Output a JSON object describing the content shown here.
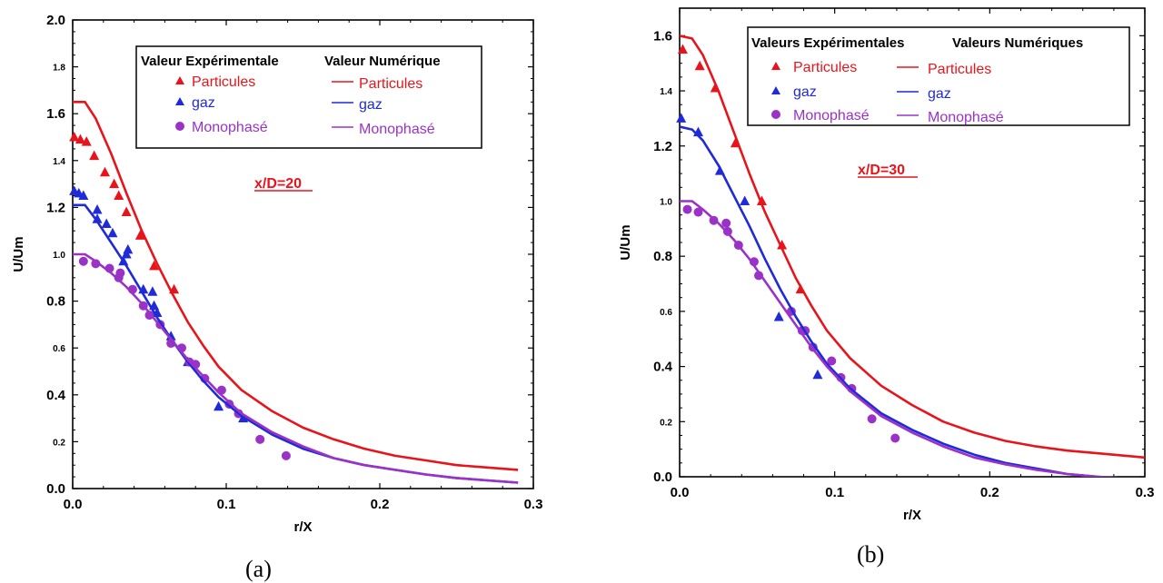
{
  "chart_data": [
    {
      "type": "scatter",
      "subfigure_label": "(a)",
      "annotation": "x/D=20",
      "xlabel": "r/X",
      "ylabel": "U/Um",
      "xlim": [
        0,
        0.3
      ],
      "ylim": [
        0,
        2.0
      ],
      "x_ticks": [
        "0.0",
        "0.1",
        "0.2",
        "0.3"
      ],
      "y_ticks": [
        {
          "v": 0.0,
          "t": "0.0",
          "major": true
        },
        {
          "v": 0.2,
          "t": "0.2",
          "major": false
        },
        {
          "v": 0.4,
          "t": "0.4",
          "major": true
        },
        {
          "v": 0.6,
          "t": "0.6",
          "major": false
        },
        {
          "v": 0.8,
          "t": "0.8",
          "major": true
        },
        {
          "v": 1.0,
          "t": "1.0",
          "major": false
        },
        {
          "v": 1.2,
          "t": "1.2",
          "major": true
        },
        {
          "v": 1.4,
          "t": "1.4",
          "major": false
        },
        {
          "v": 1.6,
          "t": "1.6",
          "major": true
        },
        {
          "v": 1.8,
          "t": "1.8",
          "major": false
        },
        {
          "v": 2.0,
          "t": "2.0",
          "major": true
        }
      ],
      "legend": {
        "exp_title": "Valeur Expérimentale",
        "num_title": "Valeur Numérique",
        "exp_labels": [
          "Particules",
          "gaz",
          "Monophasé"
        ],
        "num_labels": [
          "Particules",
          "gaz",
          "Monophasé"
        ]
      },
      "series": [
        {
          "name": "Particules",
          "kind": "experimental",
          "marker": "triangle",
          "color": "#e8141b",
          "points": [
            [
              0.001,
              1.5
            ],
            [
              0.005,
              1.49
            ],
            [
              0.009,
              1.48
            ],
            [
              0.014,
              1.42
            ],
            [
              0.021,
              1.35
            ],
            [
              0.027,
              1.3
            ],
            [
              0.03,
              1.25
            ],
            [
              0.035,
              1.18
            ],
            [
              0.044,
              1.08
            ],
            [
              0.053,
              0.95
            ],
            [
              0.066,
              0.85
            ]
          ]
        },
        {
          "name": "gaz",
          "kind": "experimental",
          "marker": "triangle",
          "color": "#1f2ad8",
          "points": [
            [
              0.001,
              1.27
            ],
            [
              0.004,
              1.26
            ],
            [
              0.007,
              1.25
            ],
            [
              0.016,
              1.19
            ],
            [
              0.016,
              1.15
            ],
            [
              0.022,
              1.13
            ],
            [
              0.026,
              1.09
            ],
            [
              0.033,
              0.97
            ],
            [
              0.035,
              1.0
            ],
            [
              0.036,
              1.02
            ],
            [
              0.046,
              0.85
            ],
            [
              0.052,
              0.84
            ],
            [
              0.053,
              0.78
            ],
            [
              0.055,
              0.75
            ],
            [
              0.064,
              0.65
            ],
            [
              0.075,
              0.54
            ],
            [
              0.095,
              0.35
            ],
            [
              0.111,
              0.3
            ]
          ]
        },
        {
          "name": "Monophasé",
          "kind": "experimental",
          "marker": "circle",
          "color": "#9b32c8",
          "points": [
            [
              0.007,
              0.97
            ],
            [
              0.015,
              0.96
            ],
            [
              0.024,
              0.94
            ],
            [
              0.03,
              0.9
            ],
            [
              0.031,
              0.92
            ],
            [
              0.039,
              0.85
            ],
            [
              0.046,
              0.78
            ],
            [
              0.05,
              0.74
            ],
            [
              0.057,
              0.7
            ],
            [
              0.064,
              0.62
            ],
            [
              0.071,
              0.6
            ],
            [
              0.076,
              0.54
            ],
            [
              0.08,
              0.53
            ],
            [
              0.086,
              0.47
            ],
            [
              0.097,
              0.42
            ],
            [
              0.102,
              0.36
            ],
            [
              0.108,
              0.32
            ],
            [
              0.122,
              0.21
            ],
            [
              0.139,
              0.14
            ]
          ]
        },
        {
          "name": "Particules",
          "kind": "numerical",
          "color": "#e8141b",
          "points": [
            [
              0,
              1.65
            ],
            [
              0.008,
              1.65
            ],
            [
              0.015,
              1.58
            ],
            [
              0.025,
              1.43
            ],
            [
              0.035,
              1.26
            ],
            [
              0.045,
              1.1
            ],
            [
              0.055,
              0.96
            ],
            [
              0.065,
              0.83
            ],
            [
              0.075,
              0.71
            ],
            [
              0.085,
              0.61
            ],
            [
              0.095,
              0.52
            ],
            [
              0.11,
              0.42
            ],
            [
              0.13,
              0.33
            ],
            [
              0.15,
              0.26
            ],
            [
              0.17,
              0.21
            ],
            [
              0.19,
              0.17
            ],
            [
              0.21,
              0.14
            ],
            [
              0.23,
              0.12
            ],
            [
              0.25,
              0.1
            ],
            [
              0.27,
              0.09
            ],
            [
              0.29,
              0.08
            ]
          ]
        },
        {
          "name": "gaz",
          "kind": "numerical",
          "color": "#1f2ad8",
          "points": [
            [
              0,
              1.21
            ],
            [
              0.008,
              1.21
            ],
            [
              0.015,
              1.15
            ],
            [
              0.025,
              1.05
            ],
            [
              0.035,
              0.95
            ],
            [
              0.045,
              0.84
            ],
            [
              0.055,
              0.73
            ],
            [
              0.065,
              0.63
            ],
            [
              0.075,
              0.54
            ],
            [
              0.085,
              0.46
            ],
            [
              0.095,
              0.39
            ],
            [
              0.11,
              0.31
            ],
            [
              0.13,
              0.23
            ],
            [
              0.15,
              0.17
            ],
            [
              0.17,
              0.13
            ],
            [
              0.19,
              0.1
            ],
            [
              0.21,
              0.08
            ],
            [
              0.23,
              0.06
            ],
            [
              0.25,
              0.045
            ],
            [
              0.27,
              0.035
            ],
            [
              0.29,
              0.025
            ]
          ]
        },
        {
          "name": "Monophasé",
          "kind": "numerical",
          "color": "#9b32c8",
          "points": [
            [
              0,
              1.0
            ],
            [
              0.008,
              1.0
            ],
            [
              0.015,
              0.97
            ],
            [
              0.025,
              0.92
            ],
            [
              0.035,
              0.86
            ],
            [
              0.045,
              0.79
            ],
            [
              0.055,
              0.71
            ],
            [
              0.065,
              0.63
            ],
            [
              0.075,
              0.55
            ],
            [
              0.085,
              0.48
            ],
            [
              0.095,
              0.41
            ],
            [
              0.11,
              0.32
            ],
            [
              0.13,
              0.24
            ],
            [
              0.15,
              0.18
            ],
            [
              0.17,
              0.13
            ],
            [
              0.19,
              0.1
            ],
            [
              0.21,
              0.08
            ],
            [
              0.23,
              0.06
            ],
            [
              0.25,
              0.045
            ],
            [
              0.27,
              0.035
            ],
            [
              0.29,
              0.025
            ]
          ]
        }
      ]
    },
    {
      "type": "scatter",
      "subfigure_label": "(b)",
      "annotation": "x/D=30",
      "xlabel": "r/X",
      "ylabel": "U/Um",
      "xlim": [
        0,
        0.3
      ],
      "ylim": [
        0,
        1.7
      ],
      "x_ticks": [
        "0.0",
        "0.1",
        "0.2",
        "0.3"
      ],
      "y_ticks": [
        {
          "v": 0.0,
          "t": "0.0",
          "major": true
        },
        {
          "v": 0.2,
          "t": "0.2",
          "major": false
        },
        {
          "v": 0.4,
          "t": "0.4",
          "major": true
        },
        {
          "v": 0.6,
          "t": "0.6",
          "major": false
        },
        {
          "v": 0.8,
          "t": "0.8",
          "major": true
        },
        {
          "v": 1.0,
          "t": "1.0",
          "major": false
        },
        {
          "v": 1.2,
          "t": "1.2",
          "major": true
        },
        {
          "v": 1.4,
          "t": "1.4",
          "major": false
        },
        {
          "v": 1.6,
          "t": "1.6",
          "major": true
        }
      ],
      "legend": {
        "exp_title": "Valeurs Expérimentales",
        "num_title": "Valeurs Numériques",
        "exp_labels": [
          "Particules",
          "gaz",
          "Monophasé"
        ],
        "num_labels": [
          "Particules",
          "gaz",
          "Monophasé"
        ]
      },
      "series": [
        {
          "name": "Particules",
          "kind": "experimental",
          "marker": "triangle",
          "color": "#e8141b",
          "points": [
            [
              0.002,
              1.55
            ],
            [
              0.013,
              1.49
            ],
            [
              0.023,
              1.41
            ],
            [
              0.036,
              1.21
            ],
            [
              0.053,
              1.0
            ],
            [
              0.066,
              0.84
            ],
            [
              0.078,
              0.68
            ]
          ]
        },
        {
          "name": "gaz",
          "kind": "experimental",
          "marker": "triangle",
          "color": "#1f2ad8",
          "points": [
            [
              0.001,
              1.3
            ],
            [
              0.012,
              1.25
            ],
            [
              0.026,
              1.11
            ],
            [
              0.042,
              1.0
            ],
            [
              0.064,
              0.58
            ],
            [
              0.089,
              0.37
            ]
          ]
        },
        {
          "name": "Monophasé",
          "kind": "experimental",
          "marker": "circle",
          "color": "#9b32c8",
          "points": [
            [
              0.005,
              0.97
            ],
            [
              0.012,
              0.96
            ],
            [
              0.022,
              0.93
            ],
            [
              0.03,
              0.92
            ],
            [
              0.031,
              0.89
            ],
            [
              0.038,
              0.84
            ],
            [
              0.048,
              0.78
            ],
            [
              0.051,
              0.73
            ],
            [
              0.072,
              0.6
            ],
            [
              0.079,
              0.53
            ],
            [
              0.081,
              0.53
            ],
            [
              0.086,
              0.47
            ],
            [
              0.098,
              0.42
            ],
            [
              0.104,
              0.36
            ],
            [
              0.111,
              0.32
            ],
            [
              0.124,
              0.21
            ],
            [
              0.139,
              0.14
            ]
          ]
        },
        {
          "name": "Particules",
          "kind": "numerical",
          "color": "#e8141b",
          "points": [
            [
              0,
              1.6
            ],
            [
              0.008,
              1.59
            ],
            [
              0.015,
              1.53
            ],
            [
              0.025,
              1.4
            ],
            [
              0.035,
              1.25
            ],
            [
              0.045,
              1.1
            ],
            [
              0.055,
              0.96
            ],
            [
              0.065,
              0.84
            ],
            [
              0.075,
              0.72
            ],
            [
              0.085,
              0.62
            ],
            [
              0.095,
              0.53
            ],
            [
              0.11,
              0.43
            ],
            [
              0.13,
              0.33
            ],
            [
              0.15,
              0.26
            ],
            [
              0.17,
              0.2
            ],
            [
              0.19,
              0.16
            ],
            [
              0.21,
              0.13
            ],
            [
              0.23,
              0.11
            ],
            [
              0.25,
              0.095
            ],
            [
              0.27,
              0.085
            ],
            [
              0.3,
              0.07
            ]
          ]
        },
        {
          "name": "gaz",
          "kind": "numerical",
          "color": "#1f2ad8",
          "points": [
            [
              0,
              1.27
            ],
            [
              0.008,
              1.26
            ],
            [
              0.015,
              1.22
            ],
            [
              0.025,
              1.13
            ],
            [
              0.035,
              1.02
            ],
            [
              0.045,
              0.91
            ],
            [
              0.055,
              0.79
            ],
            [
              0.065,
              0.68
            ],
            [
              0.075,
              0.58
            ],
            [
              0.085,
              0.49
            ],
            [
              0.095,
              0.41
            ],
            [
              0.11,
              0.32
            ],
            [
              0.13,
              0.23
            ],
            [
              0.15,
              0.17
            ],
            [
              0.17,
              0.12
            ],
            [
              0.19,
              0.08
            ],
            [
              0.21,
              0.05
            ],
            [
              0.23,
              0.03
            ],
            [
              0.25,
              0.01
            ],
            [
              0.27,
              0.0
            ],
            [
              0.3,
              -0.01
            ]
          ]
        },
        {
          "name": "Monophasé",
          "kind": "numerical",
          "color": "#9b32c8",
          "points": [
            [
              0,
              1.0
            ],
            [
              0.008,
              1.0
            ],
            [
              0.015,
              0.97
            ],
            [
              0.025,
              0.92
            ],
            [
              0.035,
              0.86
            ],
            [
              0.045,
              0.79
            ],
            [
              0.055,
              0.71
            ],
            [
              0.065,
              0.63
            ],
            [
              0.075,
              0.55
            ],
            [
              0.085,
              0.47
            ],
            [
              0.095,
              0.4
            ],
            [
              0.11,
              0.31
            ],
            [
              0.13,
              0.22
            ],
            [
              0.15,
              0.16
            ],
            [
              0.17,
              0.11
            ],
            [
              0.19,
              0.07
            ],
            [
              0.21,
              0.045
            ],
            [
              0.23,
              0.025
            ],
            [
              0.25,
              0.01
            ],
            [
              0.27,
              0.0
            ],
            [
              0.3,
              -0.01
            ]
          ]
        }
      ]
    }
  ]
}
